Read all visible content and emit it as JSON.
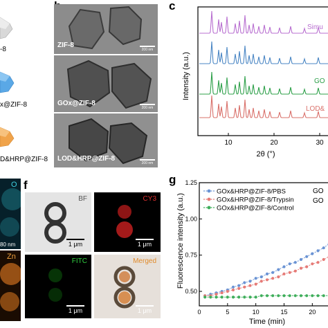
{
  "panel_labels": {
    "b": "b",
    "c": "c",
    "f": "f",
    "g": "g"
  },
  "panel_a": {
    "labels": [
      "-8",
      "x@ZIF-8",
      "D&HRP@ZIF-8"
    ]
  },
  "panel_b": {
    "images": [
      {
        "caption": "ZIF-8",
        "scale": "200 nm"
      },
      {
        "caption": "GOx@ZIF-8",
        "scale": "200 nm"
      },
      {
        "caption": "LOD&HRP@ZIF-8",
        "scale": "200 nm"
      }
    ]
  },
  "panel_c": {
    "ylabel": "Intensity (a.u.)",
    "xlabel": "2θ (°)",
    "x_ticks": [
      "10",
      "20",
      "30"
    ],
    "series_labels": [
      "Simu",
      "GO",
      "LOD&"
    ],
    "colors": [
      "#b86fd0",
      "#4a86c4",
      "#2ea04a",
      "#d9706a"
    ]
  },
  "panel_e": {
    "labels": [
      "O",
      "Zn"
    ],
    "scales": [
      "80 nm",
      "80 nm"
    ]
  },
  "panel_f": {
    "tiles": [
      {
        "label": "BF",
        "scale": "1 μm"
      },
      {
        "label": "CY3",
        "scale": "1 μm"
      },
      {
        "label": "FITC",
        "scale": "1 μm"
      },
      {
        "label": "Merged",
        "scale": "1 μm"
      }
    ]
  },
  "panel_g": {
    "legend_partial_right": [
      "GO",
      "GO"
    ]
  },
  "chart_data": {
    "type": "line",
    "title": "",
    "xlabel": "Time (min)",
    "ylabel": "Fluorescence intensity (a.u.)",
    "xlim": [
      0,
      24
    ],
    "ylim": [
      0.4,
      1.25
    ],
    "x_ticks": [
      0,
      5,
      10,
      15,
      20
    ],
    "y_ticks": [
      0.5,
      0.75,
      1.0,
      1.25
    ],
    "y_tick_labels": [
      "0.50",
      "0.75",
      "1.00",
      "1.25"
    ],
    "legend_position": "top-left",
    "x": [
      1,
      2,
      3,
      4,
      5,
      6,
      7,
      8,
      9,
      10,
      11,
      12,
      13,
      14,
      15,
      16,
      17,
      18,
      19,
      20,
      21,
      22,
      23,
      24
    ],
    "series": [
      {
        "name": "GOx&HRP@ZIF-8/PBS",
        "color": "#6a93d4",
        "values": [
          0.47,
          0.48,
          0.49,
          0.5,
          0.51,
          0.53,
          0.54,
          0.56,
          0.57,
          0.59,
          0.6,
          0.62,
          0.63,
          0.65,
          0.67,
          0.69,
          0.7,
          0.72,
          0.74,
          0.76,
          0.78,
          0.8,
          0.83,
          0.86
        ]
      },
      {
        "name": "GOx&HRP@ZIF-8/Trypsin",
        "color": "#e67b77",
        "values": [
          0.47,
          0.47,
          0.48,
          0.49,
          0.5,
          0.51,
          0.52,
          0.53,
          0.54,
          0.55,
          0.57,
          0.58,
          0.59,
          0.6,
          0.62,
          0.63,
          0.64,
          0.66,
          0.67,
          0.69,
          0.7,
          0.72,
          0.74,
          0.76
        ]
      },
      {
        "name": "GOx&HRP@ZIF-8/Control",
        "color": "#3fae5b",
        "values": [
          0.46,
          0.46,
          0.46,
          0.46,
          0.46,
          0.46,
          0.46,
          0.46,
          0.46,
          0.46,
          0.47,
          0.47,
          0.47,
          0.47,
          0.47,
          0.47,
          0.47,
          0.47,
          0.47,
          0.47,
          0.47,
          0.47,
          0.47,
          0.48
        ]
      }
    ]
  }
}
